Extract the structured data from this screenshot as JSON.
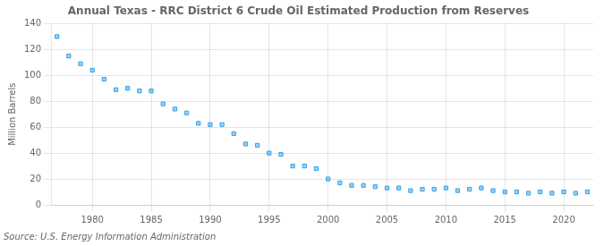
{
  "chart_data": {
    "type": "scatter",
    "title": "Annual Texas - RRC District 6 Crude Oil Estimated Production from Reserves",
    "ylabel": "Million Barrels",
    "annotation": "Source: U.S. Energy Information Administration",
    "marker": "square",
    "grid": true,
    "x": [
      1977,
      1978,
      1979,
      1980,
      1981,
      1982,
      1983,
      1984,
      1985,
      1986,
      1987,
      1988,
      1989,
      1990,
      1991,
      1992,
      1993,
      1994,
      1995,
      1996,
      1997,
      1998,
      1999,
      2000,
      2001,
      2002,
      2003,
      2004,
      2005,
      2006,
      2007,
      2008,
      2009,
      2010,
      2011,
      2012,
      2013,
      2014,
      2015,
      2016,
      2017,
      2018,
      2019,
      2020,
      2021,
      2022
    ],
    "values": [
      130,
      115,
      109,
      104,
      97,
      89,
      90,
      88,
      88,
      78,
      74,
      71,
      63,
      62,
      62,
      55,
      47,
      46,
      40,
      39,
      30,
      30,
      28,
      20,
      17,
      15,
      15,
      14,
      13,
      13,
      11,
      12,
      12,
      13,
      11,
      12,
      13,
      11,
      10,
      10,
      9,
      10,
      9,
      10,
      9,
      10
    ],
    "xlim": [
      1976.5,
      2022.5
    ],
    "xticks": [
      1980,
      1985,
      1990,
      1995,
      2000,
      2005,
      2010,
      2015,
      2020
    ],
    "ylim": [
      0,
      140
    ],
    "yticks": [
      0,
      20,
      40,
      60,
      80,
      100,
      120,
      140
    ]
  }
}
